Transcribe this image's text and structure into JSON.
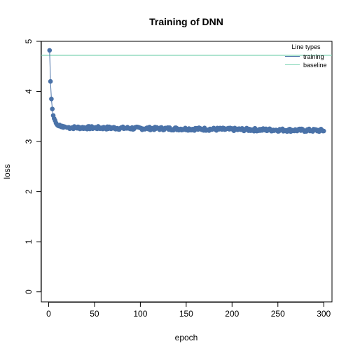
{
  "chart_data": {
    "type": "line",
    "title": "Training of DNN",
    "xlabel": "epoch",
    "ylabel": "loss",
    "xlim": [
      -8,
      309
    ],
    "ylim": [
      -0.2,
      5.0
    ],
    "x_ticks": [
      "0",
      "50",
      "100",
      "150",
      "200",
      "250",
      "300"
    ],
    "y_ticks": [
      "0",
      "1",
      "2",
      "3",
      "4",
      "5"
    ],
    "grid": false,
    "legend": {
      "title": "Line types",
      "position": "top-right",
      "items": [
        "training",
        "baseline"
      ]
    },
    "colors": {
      "training": "#4a72a8",
      "baseline": "#7fd4b4"
    },
    "series": [
      {
        "name": "training",
        "style": "line+points",
        "start_values": [
          [
            1,
            4.82
          ],
          [
            2,
            4.2
          ],
          [
            3,
            3.85
          ],
          [
            4,
            3.65
          ],
          [
            5,
            3.52
          ],
          [
            6,
            3.46
          ],
          [
            7,
            3.42
          ],
          [
            8,
            3.37
          ],
          [
            9,
            3.34
          ],
          [
            10,
            3.32
          ],
          [
            11,
            3.31
          ],
          [
            12,
            3.33
          ],
          [
            13,
            3.3
          ],
          [
            14,
            3.29
          ],
          [
            15,
            3.31
          ],
          [
            16,
            3.28
          ],
          [
            17,
            3.3
          ],
          [
            18,
            3.29
          ],
          [
            20,
            3.28
          ]
        ],
        "approx_trend": {
          "from_epoch": 20,
          "to_epoch": 300,
          "start_loss": 3.28,
          "end_loss": 3.22,
          "noise": 0.03
        }
      },
      {
        "name": "baseline",
        "style": "horizontal-line",
        "value": 4.72
      }
    ]
  }
}
